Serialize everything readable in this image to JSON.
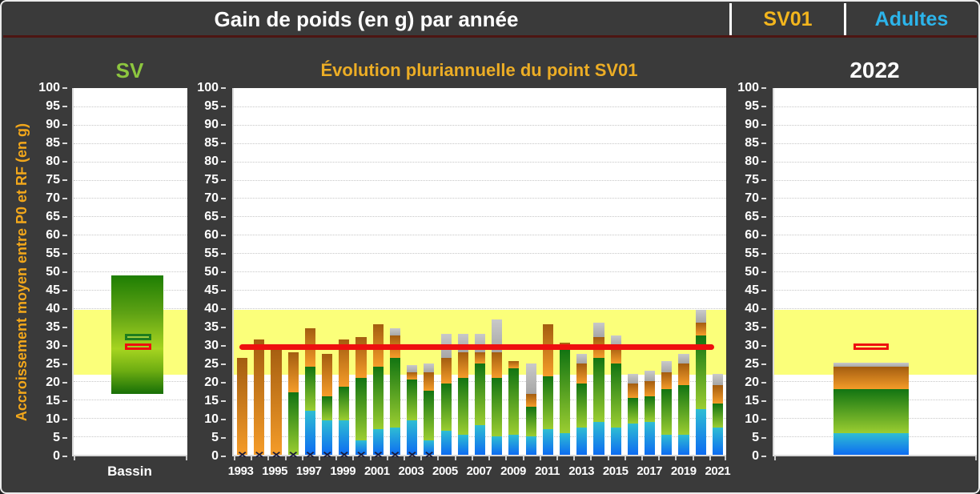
{
  "header": {
    "title": "Gain de poids (en g) par année",
    "code": "SV01",
    "group": "Adultes"
  },
  "y_axis": {
    "label": "Accroissement moyen entre P0 et RF (en g)",
    "min": 0,
    "max": 100,
    "ticks": [
      100,
      95,
      90,
      85,
      80,
      75,
      70,
      65,
      60,
      55,
      50,
      45,
      40,
      35,
      30,
      25,
      20,
      15,
      10,
      5,
      0
    ]
  },
  "x_axis_labels": [
    "1993",
    "1995",
    "1997",
    "1999",
    "2001",
    "2003",
    "2005",
    "2007",
    "2009",
    "2011",
    "2013",
    "2015",
    "2017",
    "2019",
    "2021"
  ],
  "reference_band": {
    "from": 21.8,
    "to": 39.5
  },
  "colors": {
    "background": "#3a3a3a",
    "header_title": "#ffffff",
    "header_code": "#f2b51d",
    "header_group": "#2cb4ea",
    "title_left": "#8dc63f",
    "title_middle": "#ecad25",
    "title_right": "#ffffff",
    "axis_label": "#f2a71b",
    "axis_text": "#ffffff",
    "band": "#fbff7a",
    "red": "#ee0f0f",
    "blue_top": "#2fbdd3",
    "blue_bottom": "#0d6cf2",
    "green_top": "#127412",
    "green_bottom": "#9bcd31",
    "orange_top": "#a35d10",
    "orange_bottom": "#f59c29",
    "gray_top": "#c9c9c9",
    "gray_bottom": "#a6a6a6",
    "basin_dark_green": "#1e7e03",
    "basin_light_green": "#a6d420",
    "ref_green_outline": "#1e7d1e",
    "marker": "#1b1b3a"
  },
  "chart_data": [
    {
      "id": "basin",
      "type": "bar",
      "title": "SV",
      "categories": [
        "Bassin"
      ],
      "ylim": [
        0,
        100
      ],
      "range_bar": {
        "from": 16.5,
        "to": 49
      },
      "reference_rect_green": {
        "from": 31.2,
        "to": 32.9
      },
      "reference_rect_red": {
        "from": 28.5,
        "to": 30.3
      }
    },
    {
      "id": "evolution",
      "type": "stacked-bar",
      "title": "Évolution pluriannuelle du point SV01",
      "ylim": [
        0,
        100
      ],
      "mean_line": 29.5,
      "stack_order": [
        "blue",
        "green",
        "orange",
        "gray"
      ],
      "years": [
        {
          "year": 1993,
          "blue": 0,
          "green": 0,
          "orange": 26.5,
          "gray": 0,
          "marker": true
        },
        {
          "year": 1994,
          "blue": 0,
          "green": 0,
          "orange": 31.5,
          "gray": 0,
          "marker": true
        },
        {
          "year": 1995,
          "blue": 0,
          "green": 0,
          "orange": 30,
          "gray": 0,
          "marker": true
        },
        {
          "year": 1996,
          "blue": 0,
          "green": 17,
          "orange": 11,
          "gray": 0,
          "marker": true
        },
        {
          "year": 1997,
          "blue": 12,
          "green": 12,
          "orange": 10.5,
          "gray": 0,
          "marker": true
        },
        {
          "year": 1998,
          "blue": 9.5,
          "green": 6.5,
          "orange": 11.5,
          "gray": 0,
          "marker": true
        },
        {
          "year": 1999,
          "blue": 9.5,
          "green": 9,
          "orange": 13,
          "gray": 0,
          "marker": true
        },
        {
          "year": 2000,
          "blue": 4,
          "green": 17,
          "orange": 11,
          "gray": 0,
          "marker": true
        },
        {
          "year": 2001,
          "blue": 7,
          "green": 17,
          "orange": 11.5,
          "gray": 0,
          "marker": true
        },
        {
          "year": 2002,
          "blue": 7.5,
          "green": 19,
          "orange": 6,
          "gray": 2,
          "marker": true
        },
        {
          "year": 2003,
          "blue": 9.5,
          "green": 11,
          "orange": 2,
          "gray": 2,
          "marker": true
        },
        {
          "year": 2004,
          "blue": 4,
          "green": 13.5,
          "orange": 5,
          "gray": 2.5,
          "marker": true
        },
        {
          "year": 2005,
          "blue": 6.5,
          "green": 13,
          "orange": 7,
          "gray": 6.5,
          "marker": false
        },
        {
          "year": 2006,
          "blue": 5.5,
          "green": 15.5,
          "orange": 7,
          "gray": 5,
          "marker": false
        },
        {
          "year": 2007,
          "blue": 8,
          "green": 17,
          "orange": 3,
          "gray": 5,
          "marker": false
        },
        {
          "year": 2008,
          "blue": 5,
          "green": 16,
          "orange": 7,
          "gray": 9,
          "marker": false
        },
        {
          "year": 2009,
          "blue": 5.5,
          "green": 18,
          "orange": 2,
          "gray": 0,
          "marker": false
        },
        {
          "year": 2010,
          "blue": 5,
          "green": 8,
          "orange": 3.5,
          "gray": 8.5,
          "marker": false
        },
        {
          "year": 2011,
          "blue": 7,
          "green": 14.5,
          "orange": 14,
          "gray": 0,
          "marker": false
        },
        {
          "year": 2012,
          "blue": 6,
          "green": 22.5,
          "orange": 2,
          "gray": 0,
          "marker": false
        },
        {
          "year": 2013,
          "blue": 7.5,
          "green": 12,
          "orange": 5.5,
          "gray": 2.5,
          "marker": false
        },
        {
          "year": 2014,
          "blue": 9,
          "green": 17.5,
          "orange": 5.5,
          "gray": 4,
          "marker": false
        },
        {
          "year": 2015,
          "blue": 7.5,
          "green": 17.5,
          "orange": 4.5,
          "gray": 3,
          "marker": false
        },
        {
          "year": 2016,
          "blue": 8.5,
          "green": 7,
          "orange": 4,
          "gray": 2.5,
          "marker": false
        },
        {
          "year": 2017,
          "blue": 9,
          "green": 7,
          "orange": 4,
          "gray": 3,
          "marker": false
        },
        {
          "year": 2018,
          "blue": 5.5,
          "green": 12.5,
          "orange": 4.5,
          "gray": 3,
          "marker": false
        },
        {
          "year": 2019,
          "blue": 5.5,
          "green": 13.5,
          "orange": 6,
          "gray": 2.5,
          "marker": false
        },
        {
          "year": 2020,
          "blue": 12.5,
          "green": 20,
          "orange": 3.5,
          "gray": 3.5,
          "marker": false
        },
        {
          "year": 2021,
          "blue": 7.5,
          "green": 6.5,
          "orange": 5,
          "gray": 3,
          "marker": false
        }
      ]
    },
    {
      "id": "current-year",
      "type": "stacked-bar",
      "title": "2022",
      "ylim": [
        0,
        100
      ],
      "bar": {
        "year": 2022,
        "blue": 6,
        "green": 12,
        "orange": 6,
        "gray": 1.2
      },
      "reference_rect_red": {
        "from": 28.5,
        "to": 30.4
      }
    }
  ]
}
